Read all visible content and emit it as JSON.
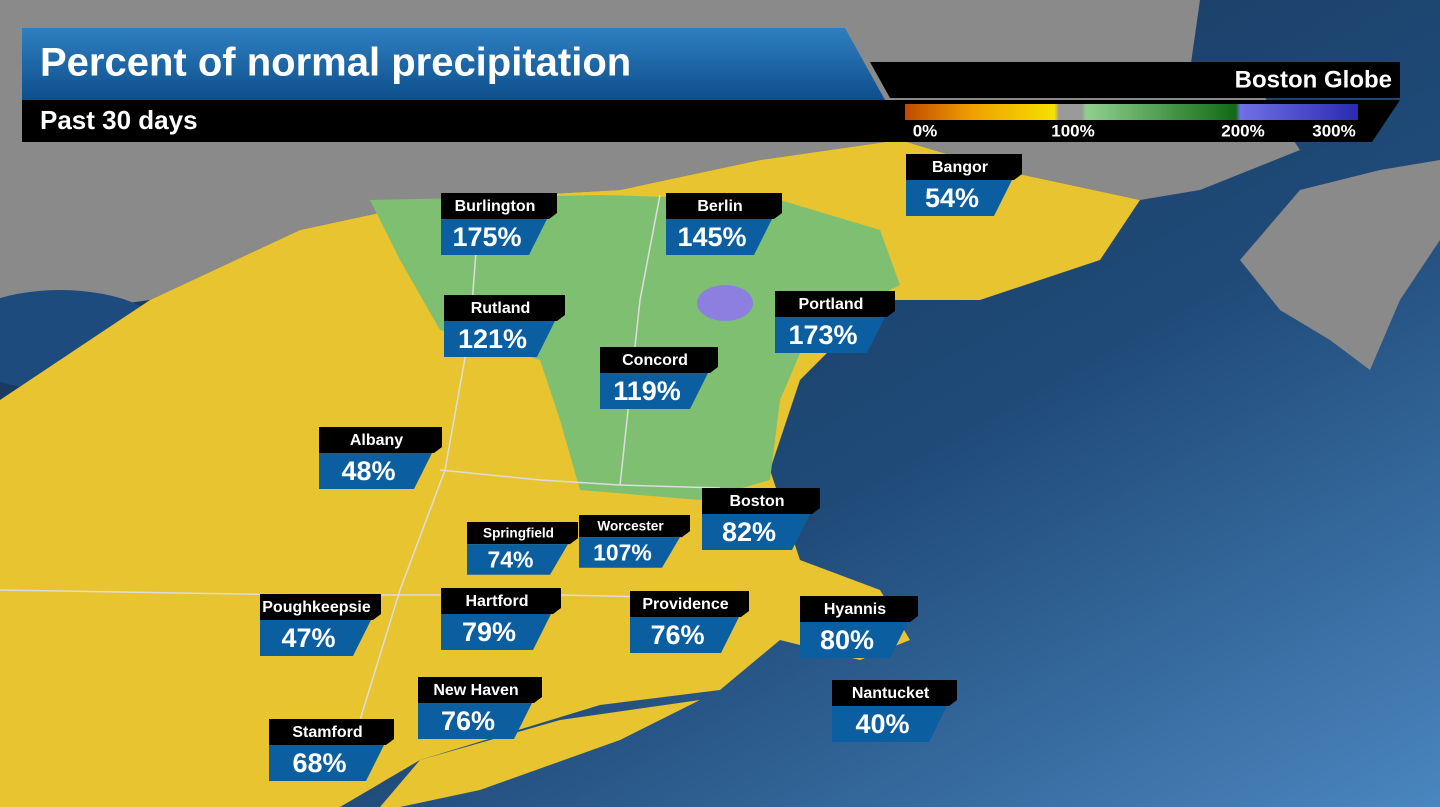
{
  "header": {
    "title": "Percent of normal precipitation",
    "subtitle": "Past 30 days",
    "source": "Boston Globe"
  },
  "legend": {
    "labels": [
      "0%",
      "100%",
      "200%",
      "300%"
    ]
  },
  "cities": [
    {
      "name": "Bangor",
      "percent": "54%"
    },
    {
      "name": "Burlington",
      "percent": "175%"
    },
    {
      "name": "Berlin",
      "percent": "145%"
    },
    {
      "name": "Rutland",
      "percent": "121%"
    },
    {
      "name": "Portland",
      "percent": "173%"
    },
    {
      "name": "Concord",
      "percent": "119%"
    },
    {
      "name": "Albany",
      "percent": "48%"
    },
    {
      "name": "Boston",
      "percent": "82%"
    },
    {
      "name": "Springfield",
      "percent": "74%"
    },
    {
      "name": "Worcester",
      "percent": "107%"
    },
    {
      "name": "Poughkeepsie",
      "percent": "47%"
    },
    {
      "name": "Hartford",
      "percent": "79%"
    },
    {
      "name": "Providence",
      "percent": "76%"
    },
    {
      "name": "Hyannis",
      "percent": "80%"
    },
    {
      "name": "New Haven",
      "percent": "76%"
    },
    {
      "name": "Nantucket",
      "percent": "40%"
    },
    {
      "name": "Stamford",
      "percent": "68%"
    }
  ]
}
